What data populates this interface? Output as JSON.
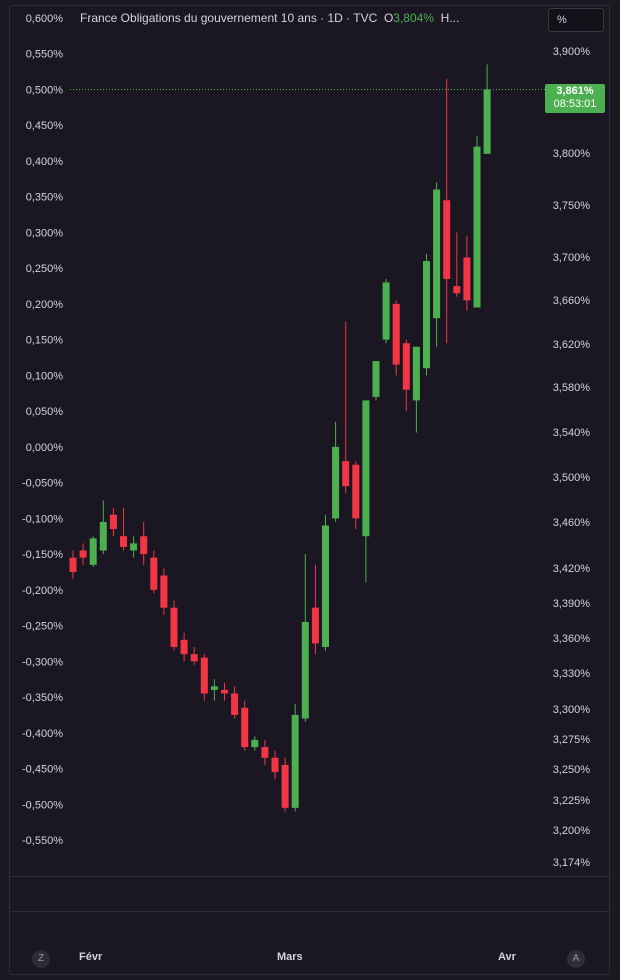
{
  "legend": {
    "title": "France Obligations du gouvernement 10 ans · 1D · TVC",
    "open_prefix": "O",
    "open_value": "3,804%",
    "more": "H..."
  },
  "unit_button": "%",
  "price_tag": {
    "price": "3,861%",
    "time": "08:53:01"
  },
  "buttons": {
    "zoom": "Z",
    "auto": "A"
  },
  "colors": {
    "up": "#4caf50",
    "down": "#f23645",
    "background": "#1b1722"
  },
  "chart_data": {
    "type": "candlestick",
    "title": "France Obligations du gouvernement 10 ans · 1D · TVC",
    "x_tick_labels": [
      "Févr",
      "Mars",
      "Avr"
    ],
    "left_axis": {
      "label": "",
      "ticks": [
        "0,600%",
        "0,550%",
        "0,500%",
        "0,450%",
        "0,400%",
        "0,350%",
        "0,300%",
        "0,250%",
        "0,200%",
        "0,150%",
        "0,100%",
        "0,050%",
        "0,000%",
        "-0,050%",
        "-0,100%",
        "-0,150%",
        "-0,200%",
        "-0,250%",
        "-0,300%",
        "-0,350%",
        "-0,400%",
        "-0,450%",
        "-0,500%",
        "-0,550%"
      ],
      "range": [
        -0.55,
        0.6
      ]
    },
    "right_axis": {
      "label": "",
      "log_scale": true,
      "ticks": [
        "3,900%",
        "3,800%",
        "3,750%",
        "3,700%",
        "3,660%",
        "3,620%",
        "3,580%",
        "3,540%",
        "3,500%",
        "3,460%",
        "3,420%",
        "3,390%",
        "3,360%",
        "3,330%",
        "3,300%",
        "3,275%",
        "3,250%",
        "3,225%",
        "3,200%",
        "3,174%"
      ]
    },
    "last_price": 0.5,
    "candles": [
      {
        "o": -0.155,
        "h": -0.145,
        "l": -0.185,
        "c": -0.175
      },
      {
        "o": -0.145,
        "h": -0.135,
        "l": -0.165,
        "c": -0.155
      },
      {
        "o": -0.165,
        "h": -0.125,
        "l": -0.168,
        "c": -0.128
      },
      {
        "o": -0.145,
        "h": -0.075,
        "l": -0.15,
        "c": -0.105
      },
      {
        "o": -0.095,
        "h": -0.085,
        "l": -0.125,
        "c": -0.115
      },
      {
        "o": -0.125,
        "h": -0.085,
        "l": -0.145,
        "c": -0.14
      },
      {
        "o": -0.145,
        "h": -0.125,
        "l": -0.155,
        "c": -0.135
      },
      {
        "o": -0.125,
        "h": -0.105,
        "l": -0.165,
        "c": -0.15
      },
      {
        "o": -0.155,
        "h": -0.145,
        "l": -0.205,
        "c": -0.2
      },
      {
        "o": -0.18,
        "h": -0.17,
        "l": -0.235,
        "c": -0.225
      },
      {
        "o": -0.225,
        "h": -0.215,
        "l": -0.285,
        "c": -0.28
      },
      {
        "o": -0.27,
        "h": -0.26,
        "l": -0.3,
        "c": -0.29
      },
      {
        "o": -0.29,
        "h": -0.28,
        "l": -0.305,
        "c": -0.3
      },
      {
        "o": -0.295,
        "h": -0.29,
        "l": -0.355,
        "c": -0.345
      },
      {
        "o": -0.34,
        "h": -0.325,
        "l": -0.355,
        "c": -0.335
      },
      {
        "o": -0.34,
        "h": -0.33,
        "l": -0.355,
        "c": -0.345
      },
      {
        "o": -0.345,
        "h": -0.335,
        "l": -0.38,
        "c": -0.375
      },
      {
        "o": -0.365,
        "h": -0.355,
        "l": -0.425,
        "c": -0.42
      },
      {
        "o": -0.42,
        "h": -0.405,
        "l": -0.425,
        "c": -0.41
      },
      {
        "o": -0.42,
        "h": -0.41,
        "l": -0.445,
        "c": -0.435
      },
      {
        "o": -0.435,
        "h": -0.425,
        "l": -0.465,
        "c": -0.455
      },
      {
        "o": -0.445,
        "h": -0.435,
        "l": -0.51,
        "c": -0.505
      },
      {
        "o": -0.505,
        "h": -0.36,
        "l": -0.51,
        "c": -0.375
      },
      {
        "o": -0.38,
        "h": -0.15,
        "l": -0.385,
        "c": -0.245
      },
      {
        "o": -0.225,
        "h": -0.165,
        "l": -0.29,
        "c": -0.275
      },
      {
        "o": -0.28,
        "h": -0.095,
        "l": -0.285,
        "c": -0.11
      },
      {
        "o": -0.1,
        "h": 0.035,
        "l": -0.105,
        "c": 0.0
      },
      {
        "o": -0.02,
        "h": 0.175,
        "l": -0.065,
        "c": -0.055
      },
      {
        "o": -0.025,
        "h": -0.02,
        "l": -0.115,
        "c": -0.1
      },
      {
        "o": -0.125,
        "h": 0.065,
        "l": -0.19,
        "c": 0.065
      },
      {
        "o": 0.07,
        "h": 0.12,
        "l": 0.065,
        "c": 0.12
      },
      {
        "o": 0.15,
        "h": 0.235,
        "l": 0.145,
        "c": 0.23
      },
      {
        "o": 0.2,
        "h": 0.205,
        "l": 0.1,
        "c": 0.115
      },
      {
        "o": 0.145,
        "h": 0.15,
        "l": 0.05,
        "c": 0.08
      },
      {
        "o": 0.065,
        "h": 0.13,
        "l": 0.02,
        "c": 0.14
      },
      {
        "o": 0.11,
        "h": 0.27,
        "l": 0.1,
        "c": 0.26
      },
      {
        "o": 0.18,
        "h": 0.37,
        "l": 0.14,
        "c": 0.36
      },
      {
        "o": 0.345,
        "h": 0.515,
        "l": 0.145,
        "c": 0.235
      },
      {
        "o": 0.225,
        "h": 0.3,
        "l": 0.21,
        "c": 0.215
      },
      {
        "o": 0.265,
        "h": 0.295,
        "l": 0.19,
        "c": 0.205
      },
      {
        "o": 0.195,
        "h": 0.435,
        "l": 0.195,
        "c": 0.42
      },
      {
        "o": 0.41,
        "h": 0.535,
        "l": 0.41,
        "c": 0.5
      }
    ]
  }
}
